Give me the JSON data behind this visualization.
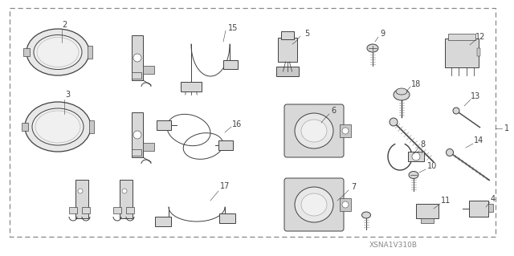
{
  "bg": "#f0f0f0",
  "white": "#ffffff",
  "line": "#404040",
  "gray_fill": "#d8d8d8",
  "light_fill": "#f0f0f0",
  "label_fs": 7,
  "wm": "XSNA1V310B",
  "wm_fs": 6.5,
  "wm_color": "#888888",
  "border_dash": [
    4,
    3
  ],
  "lw": 0.7
}
